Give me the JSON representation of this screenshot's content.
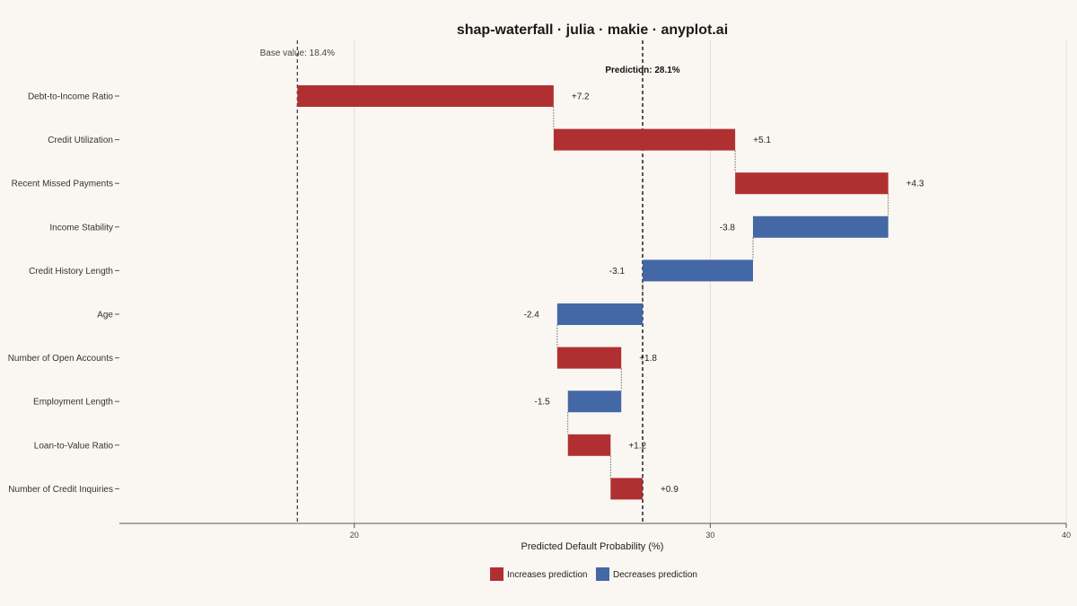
{
  "chart_data": {
    "type": "bar",
    "title": "shap-waterfall · julia · makie · anyplot.ai",
    "xlabel": "Predicted Default Probability (%)",
    "ylabel": "",
    "xlim": [
      13.4,
      40
    ],
    "xticks": [
      20,
      30,
      40
    ],
    "grid": "vertical",
    "base_value": 18.4,
    "prediction": 28.1,
    "base_label": "Base value: 18.4%",
    "prediction_label": "Prediction: 28.1%",
    "features": [
      "Debt-to-Income Ratio",
      "Credit Utilization",
      "Recent Missed Payments",
      "Income Stability",
      "Credit History Length",
      "Age",
      "Number of Open Accounts",
      "Employment Length",
      "Loan-to-Value Ratio",
      "Number of Credit Inquiries"
    ],
    "contributions": [
      7.2,
      5.1,
      4.3,
      -3.8,
      -3.1,
      -2.4,
      1.8,
      -1.5,
      1.2,
      0.9
    ],
    "value_labels": [
      "+7.2",
      "+5.1",
      "+4.3",
      "-3.8",
      "-3.1",
      "-2.4",
      "+1.8",
      "-1.5",
      "+1.2",
      "+0.9"
    ],
    "legend": [
      {
        "name": "Increases prediction",
        "color": "#B03032"
      },
      {
        "name": "Decreases prediction",
        "color": "#4467A6"
      }
    ],
    "legend_position": "bottom",
    "colors": {
      "positive": "#B03032",
      "negative": "#4467A6",
      "background": "#FAF7F2"
    }
  }
}
